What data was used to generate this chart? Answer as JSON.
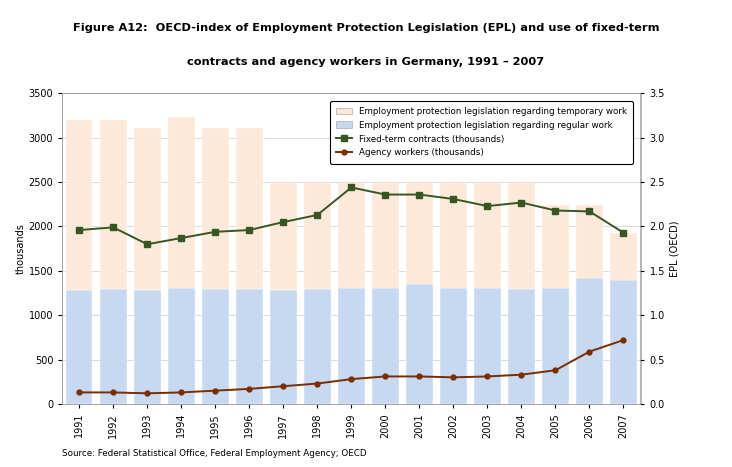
{
  "years": [
    1991,
    1992,
    1993,
    1994,
    1995,
    1996,
    1997,
    1998,
    1999,
    2000,
    2001,
    2002,
    2003,
    2004,
    2005,
    2006,
    2007
  ],
  "bar_blue": [
    1280,
    1290,
    1280,
    1310,
    1300,
    1290,
    1285,
    1300,
    1310,
    1310,
    1350,
    1310,
    1310,
    1300,
    1310,
    1420,
    1400
  ],
  "bar_total": [
    3200,
    3200,
    3110,
    3230,
    3110,
    3110,
    2490,
    2490,
    2490,
    2490,
    2490,
    2490,
    2490,
    2490,
    2240,
    2240,
    1930
  ],
  "fixed_term": [
    1960,
    1990,
    1800,
    1870,
    1940,
    1960,
    2050,
    2130,
    2440,
    2360,
    2360,
    2310,
    2230,
    2270,
    2180,
    2170,
    1930
  ],
  "agency_workers": [
    130,
    130,
    120,
    130,
    150,
    170,
    200,
    230,
    280,
    310,
    310,
    300,
    310,
    330,
    380,
    590,
    720
  ],
  "color_bar_blue": "#c6d9f1",
  "color_bar_orange": "#fde9d9",
  "color_fixed_term": "#375623",
  "color_agency": "#7b2c00",
  "title_line1": "Figure A12:  OECD-index of Employment Protection Legislation (EPL) and use of fixed-term",
  "title_line2": "contracts and agency workers in Germany, 1991 – 2007",
  "ylabel_left": "thousands",
  "ylabel_right": "EPL (OECD)",
  "source": "Source: Federal Statistical Office, Federal Employment Agency; OECD",
  "legend_temporary": "Employment protection legislation regarding temporary work",
  "legend_regular": "Employment protection legislation regarding regular work",
  "legend_fixed": "Fixed-term contracts (thousands)",
  "legend_agency": "Agency workers (thousands)",
  "ylim_left": [
    0,
    3500
  ],
  "ylim_right": [
    0,
    3.5
  ],
  "yticks_left": [
    0,
    500,
    1000,
    1500,
    2000,
    2500,
    3000,
    3500
  ],
  "yticks_right": [
    0,
    0.5,
    1.0,
    1.5,
    2.0,
    2.5,
    3.0,
    3.5
  ],
  "header_bg": "#d9d9d9",
  "plot_bg": "#ffffff",
  "fig_bg": "#ffffff"
}
